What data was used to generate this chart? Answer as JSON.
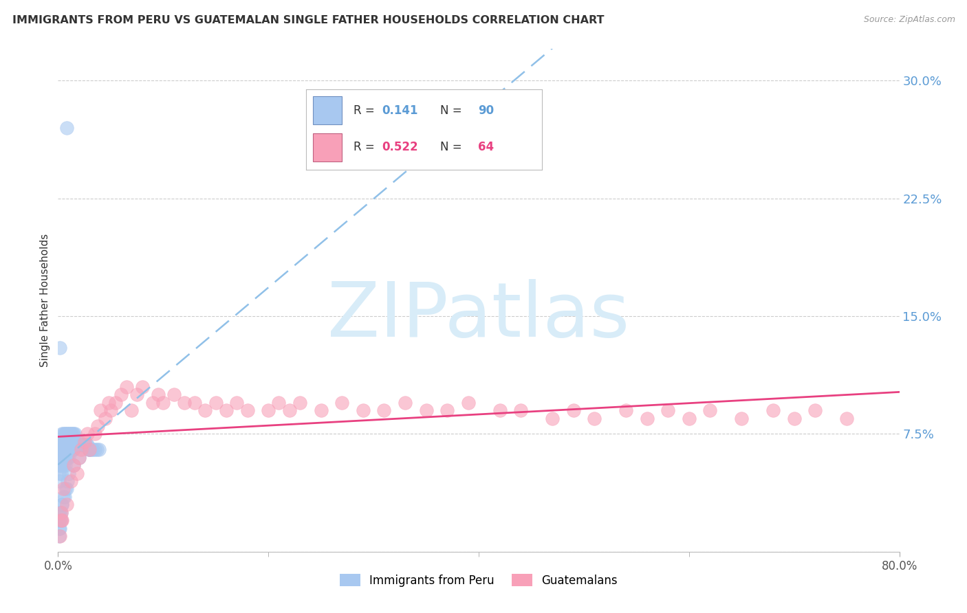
{
  "title": "IMMIGRANTS FROM PERU VS GUATEMALAN SINGLE FATHER HOUSEHOLDS CORRELATION CHART",
  "source": "Source: ZipAtlas.com",
  "ylabel": "Single Father Households",
  "color_blue": "#a8c8f0",
  "color_pink": "#f8a0b8",
  "color_trendline_blue": "#90c0e8",
  "color_trendline_pink": "#e84080",
  "background_color": "#ffffff",
  "xlim": [
    0.0,
    0.8
  ],
  "ylim": [
    0.0,
    0.32
  ],
  "ytick_vals": [
    0.0,
    0.075,
    0.15,
    0.225,
    0.3
  ],
  "ytick_labels": [
    "",
    "7.5%",
    "15.0%",
    "22.5%",
    "30.0%"
  ],
  "peru_x": [
    0.008,
    0.002,
    0.001,
    0.001,
    0.001,
    0.001,
    0.002,
    0.002,
    0.002,
    0.003,
    0.003,
    0.003,
    0.003,
    0.003,
    0.004,
    0.004,
    0.004,
    0.004,
    0.005,
    0.005,
    0.005,
    0.005,
    0.005,
    0.006,
    0.006,
    0.006,
    0.006,
    0.007,
    0.007,
    0.007,
    0.007,
    0.008,
    0.008,
    0.008,
    0.009,
    0.009,
    0.009,
    0.01,
    0.01,
    0.01,
    0.011,
    0.011,
    0.012,
    0.012,
    0.013,
    0.013,
    0.014,
    0.014,
    0.015,
    0.015,
    0.016,
    0.017,
    0.018,
    0.019,
    0.02,
    0.021,
    0.022,
    0.023,
    0.024,
    0.025,
    0.026,
    0.027,
    0.028,
    0.029,
    0.03,
    0.032,
    0.033,
    0.035,
    0.037,
    0.039,
    0.001,
    0.001,
    0.001,
    0.001,
    0.002,
    0.002,
    0.002,
    0.003,
    0.003,
    0.004,
    0.004,
    0.005,
    0.006,
    0.007,
    0.008,
    0.009,
    0.01,
    0.015,
    0.02,
    0.03
  ],
  "peru_y": [
    0.27,
    0.13,
    0.06,
    0.055,
    0.05,
    0.045,
    0.065,
    0.06,
    0.055,
    0.07,
    0.065,
    0.06,
    0.055,
    0.05,
    0.075,
    0.07,
    0.065,
    0.06,
    0.075,
    0.07,
    0.065,
    0.06,
    0.055,
    0.075,
    0.07,
    0.065,
    0.06,
    0.075,
    0.07,
    0.065,
    0.055,
    0.075,
    0.07,
    0.06,
    0.075,
    0.07,
    0.06,
    0.075,
    0.07,
    0.06,
    0.075,
    0.065,
    0.075,
    0.065,
    0.075,
    0.065,
    0.075,
    0.065,
    0.075,
    0.065,
    0.075,
    0.07,
    0.068,
    0.068,
    0.07,
    0.068,
    0.068,
    0.068,
    0.068,
    0.068,
    0.068,
    0.068,
    0.068,
    0.065,
    0.065,
    0.065,
    0.065,
    0.065,
    0.065,
    0.065,
    0.01,
    0.015,
    0.02,
    0.025,
    0.015,
    0.02,
    0.025,
    0.02,
    0.025,
    0.03,
    0.03,
    0.035,
    0.035,
    0.04,
    0.04,
    0.045,
    0.05,
    0.055,
    0.06,
    0.065
  ],
  "guat_x": [
    0.005,
    0.008,
    0.012,
    0.015,
    0.018,
    0.02,
    0.022,
    0.025,
    0.028,
    0.03,
    0.035,
    0.038,
    0.04,
    0.045,
    0.048,
    0.05,
    0.055,
    0.06,
    0.065,
    0.07,
    0.075,
    0.08,
    0.09,
    0.095,
    0.1,
    0.11,
    0.12,
    0.13,
    0.14,
    0.15,
    0.16,
    0.17,
    0.18,
    0.2,
    0.21,
    0.22,
    0.23,
    0.25,
    0.27,
    0.29,
    0.31,
    0.33,
    0.35,
    0.37,
    0.39,
    0.42,
    0.44,
    0.47,
    0.49,
    0.51,
    0.54,
    0.56,
    0.58,
    0.6,
    0.62,
    0.65,
    0.68,
    0.7,
    0.72,
    0.75,
    0.002,
    0.003,
    0.003,
    0.004
  ],
  "guat_y": [
    0.04,
    0.03,
    0.045,
    0.055,
    0.05,
    0.06,
    0.065,
    0.07,
    0.075,
    0.065,
    0.075,
    0.08,
    0.09,
    0.085,
    0.095,
    0.09,
    0.095,
    0.1,
    0.105,
    0.09,
    0.1,
    0.105,
    0.095,
    0.1,
    0.095,
    0.1,
    0.095,
    0.095,
    0.09,
    0.095,
    0.09,
    0.095,
    0.09,
    0.09,
    0.095,
    0.09,
    0.095,
    0.09,
    0.095,
    0.09,
    0.09,
    0.095,
    0.09,
    0.09,
    0.095,
    0.09,
    0.09,
    0.085,
    0.09,
    0.085,
    0.09,
    0.085,
    0.09,
    0.085,
    0.09,
    0.085,
    0.09,
    0.085,
    0.09,
    0.085,
    0.01,
    0.02,
    0.025,
    0.02
  ],
  "trendline_blue_x0": 0.0,
  "trendline_blue_x1": 0.8,
  "trendline_pink_x0": 0.0,
  "trendline_pink_x1": 0.8
}
